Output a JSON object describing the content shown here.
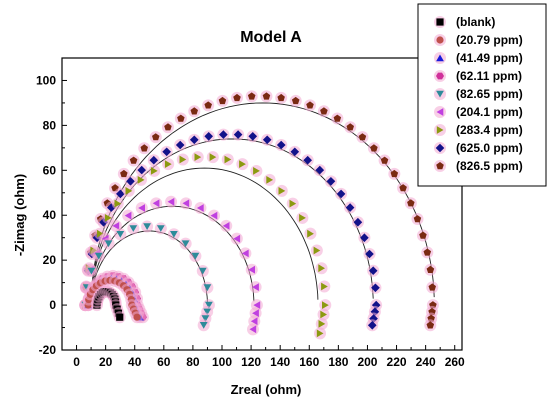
{
  "chart_data": {
    "type": "scatter",
    "title": "Model A",
    "xlabel": "Zreal (ohm)",
    "ylabel": "-Zimag (ohm)",
    "xlim": [
      -10,
      265
    ],
    "ylim": [
      -20,
      110
    ],
    "x_ticks": [
      0,
      20,
      40,
      60,
      80,
      100,
      120,
      140,
      160,
      180,
      200,
      220,
      240,
      260
    ],
    "y_ticks": [
      -20,
      0,
      20,
      40,
      60,
      80,
      100
    ],
    "x_tick_labels": [
      "0",
      "20",
      "40",
      "60",
      "80",
      "100",
      "120",
      "140",
      "160",
      "180",
      "200",
      "220",
      "240",
      "260"
    ],
    "y_tick_labels": [
      "-20",
      "0",
      "20",
      "40",
      "60",
      "80",
      "100"
    ],
    "grid": false,
    "legend_position": "top-right",
    "series": [
      {
        "name": "(blank)",
        "marker": "square",
        "color": "#000000",
        "halo": "#f2a8d2",
        "arc": {
          "r0": 14,
          "r1": 27,
          "hmax": 6,
          "tail_dx": 3,
          "tail_dy": 3
        }
      },
      {
        "name": "(20.79 ppm)",
        "marker": "circle",
        "color": "#c0504d",
        "halo": "#f2a8d2",
        "arc": {
          "r0": 8,
          "r1": 38,
          "hmax": 11,
          "tail_dx": 4,
          "tail_dy": 3
        }
      },
      {
        "name": "(41.49 ppm)",
        "marker": "triangle-up",
        "color": "#1a1adb",
        "halo": "#f2a8d2",
        "arc": {
          "r0": 8,
          "r1": 40,
          "hmax": 12,
          "tail_dx": 4,
          "tail_dy": 3
        }
      },
      {
        "name": "(62.11 ppm)",
        "marker": "hexagon",
        "color": "#d0309a",
        "halo": "#f2a8d2",
        "arc": {
          "r0": 8,
          "r1": 42,
          "hmax": 13,
          "tail_dx": 4,
          "tail_dy": 3
        }
      },
      {
        "name": "(82.65 ppm)",
        "marker": "triangle-down",
        "color": "#2e8b9a",
        "halo": "#f2a8d2",
        "arc": {
          "r0": 6,
          "r1": 91,
          "hmax": 35,
          "tail_dx": -4,
          "tail_dy": 5
        }
      },
      {
        "name": "(204.1 ppm)",
        "marker": "triangle-left",
        "color": "#c040e0",
        "halo": "#f2a8d2",
        "arc": {
          "r0": 6,
          "r1": 124,
          "hmax": 46,
          "tail_dx": -3,
          "tail_dy": 6
        }
      },
      {
        "name": "(283.4 ppm)",
        "marker": "triangle-right",
        "color": "#8c9a10",
        "halo": "#f2a8d2",
        "arc": {
          "r0": 6,
          "r1": 171,
          "hmax": 66,
          "tail_dx": -4,
          "tail_dy": 7
        }
      },
      {
        "name": "(625.0 ppm)",
        "marker": "diamond",
        "color": "#12128a",
        "halo": "#f2a8d2",
        "arc": {
          "r0": 6,
          "r1": 206,
          "hmax": 76,
          "tail_dx": -3,
          "tail_dy": 5
        }
      },
      {
        "name": "(826.5 ppm)",
        "marker": "pentagon",
        "color": "#7a2a12",
        "halo": "#f2a8d2",
        "arc": {
          "r0": 6,
          "r1": 245,
          "hmax": 93,
          "tail_dx": -2,
          "tail_dy": 5
        }
      }
    ],
    "fits": [
      {
        "r0": 10,
        "r1": 204,
        "hmax": 74
      },
      {
        "r0": 10,
        "r1": 166,
        "hmax": 61
      },
      {
        "r0": 10,
        "r1": 122,
        "hmax": 44
      },
      {
        "r0": 10,
        "r1": 90,
        "hmax": 33
      },
      {
        "r0": 10,
        "r1": 246,
        "hmax": 90
      },
      {
        "r0": 10,
        "r1": 40,
        "hmax": 12
      }
    ]
  }
}
